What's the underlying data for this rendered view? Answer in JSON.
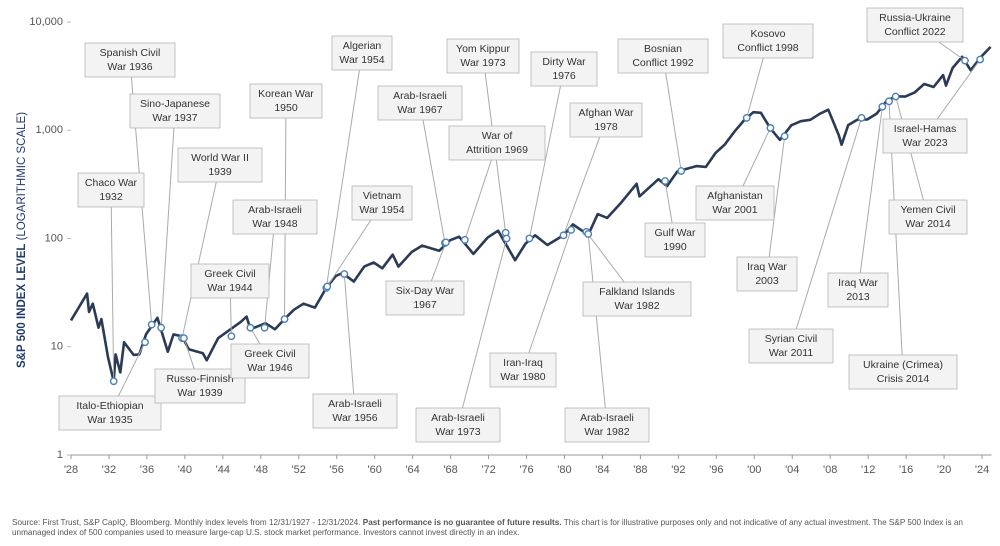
{
  "chart_data": {
    "type": "line",
    "log_scale": true,
    "color": "#2b3a55",
    "marker_color": "#4a7fb5",
    "y_label": "S&P 500 INDEX LEVEL",
    "y_label_note": "(LOGARITHMIC SCALE)",
    "xlim": [
      1928,
      2025
    ],
    "ylim": [
      1,
      10000
    ],
    "xticks": [
      {
        "value": 1928,
        "label": "'28"
      },
      {
        "value": 1932,
        "label": "'32"
      },
      {
        "value": 1936,
        "label": "'36"
      },
      {
        "value": 1940,
        "label": "'40"
      },
      {
        "value": 1944,
        "label": "'44"
      },
      {
        "value": 1948,
        "label": "'48"
      },
      {
        "value": 1952,
        "label": "'52"
      },
      {
        "value": 1956,
        "label": "'56"
      },
      {
        "value": 1960,
        "label": "'60"
      },
      {
        "value": 1964,
        "label": "'64"
      },
      {
        "value": 1968,
        "label": "'68"
      },
      {
        "value": 1972,
        "label": "'72"
      },
      {
        "value": 1976,
        "label": "'76"
      },
      {
        "value": 1980,
        "label": "'80"
      },
      {
        "value": 1984,
        "label": "'84"
      },
      {
        "value": 1988,
        "label": "'88"
      },
      {
        "value": 1992,
        "label": "'92"
      },
      {
        "value": 1996,
        "label": "'96"
      },
      {
        "value": 2000,
        "label": "'00"
      },
      {
        "value": 2004,
        "label": "'04"
      },
      {
        "value": 2008,
        "label": "'08"
      },
      {
        "value": 2012,
        "label": "'12"
      },
      {
        "value": 2016,
        "label": "'16"
      },
      {
        "value": 2020,
        "label": "'20"
      },
      {
        "value": 2024,
        "label": "'24"
      }
    ],
    "yticks": [
      1,
      10,
      100,
      {
        "value": 1000,
        "label": "1,000"
      },
      {
        "value": 10000,
        "label": "10,000"
      }
    ],
    "x": [
      1928.0,
      1929.7,
      1929.9,
      1930.3,
      1930.9,
      1931.2,
      1931.9,
      1932.5,
      1932.7,
      1933.2,
      1933.6,
      1934.6,
      1935.2,
      1935.9,
      1937.1,
      1938.2,
      1938.8,
      1939.7,
      1940.4,
      1941.9,
      1942.3,
      1943.5,
      1945.9,
      1946.5,
      1946.9,
      1948.5,
      1949.5,
      1950.5,
      1951.5,
      1952.5,
      1953.7,
      1954.9,
      1955.9,
      1956.6,
      1957.8,
      1958.9,
      1959.9,
      1960.8,
      1961.9,
      1962.5,
      1963.9,
      1965.0,
      1966.8,
      1967.9,
      1968.9,
      1970.4,
      1971.9,
      1973.0,
      1974.8,
      1975.9,
      1976.9,
      1978.2,
      1979.9,
      1980.9,
      1982.5,
      1983.5,
      1984.5,
      1985.9,
      1987.6,
      1987.9,
      1989.9,
      1990.8,
      1991.9,
      1993.9,
      1994.9,
      1995.9,
      1996.9,
      1997.9,
      1998.9,
      1999.9,
      2000.7,
      2001.7,
      2002.7,
      2003.9,
      2004.9,
      2005.9,
      2006.9,
      2007.8,
      2008.9,
      2009.2,
      2009.9,
      2010.9,
      2011.9,
      2012.9,
      2013.9,
      2014.9,
      2015.9,
      2016.9,
      2017.9,
      2018.9,
      2019.9,
      2020.2,
      2020.9,
      2021.9,
      2022.8,
      2023.9,
      2024.9
    ],
    "values": [
      17.5,
      31,
      21,
      25,
      15,
      18,
      8,
      4.8,
      8.5,
      5.8,
      11,
      8.4,
      8.5,
      13,
      18.5,
      9,
      13,
      12.5,
      9.5,
      8.7,
      7.5,
      12,
      17,
      19,
      14.5,
      16.5,
      14.5,
      18,
      22,
      25,
      23,
      35,
      45,
      48,
      40,
      55,
      60,
      53,
      71,
      55,
      75,
      86,
      77,
      96,
      104,
      72,
      102,
      118,
      63,
      90,
      107,
      87,
      107,
      135,
      108,
      168,
      155,
      211,
      320,
      245,
      353,
      305,
      417,
      466,
      459,
      615,
      740,
      970,
      1229,
      1469,
      1450,
      1040,
      815,
      1112,
      1212,
      1248,
      1418,
      1549,
      903,
      735,
      1115,
      1258,
      1258,
      1426,
      1848,
      2059,
      2044,
      2239,
      2674,
      2507,
      3231,
      2585,
      3756,
      4766,
      3586,
      4770,
      5882
    ],
    "annotations": [
      {
        "label": [
          "Spanish Civil",
          "War 1936"
        ],
        "x": 1936.5,
        "y": 16
      },
      {
        "label": [
          "Sino-Japanese",
          "War 1937"
        ],
        "x": 1937.5,
        "y": 15
      },
      {
        "label": [
          "Chaco War",
          "1932"
        ],
        "x": 1932.5,
        "y": 4.8
      },
      {
        "label": [
          "World War II",
          "1939"
        ],
        "x": 1939.7,
        "y": 12
      },
      {
        "label": [
          "Italo-Ethiopian",
          "War 1935"
        ],
        "x": 1935.8,
        "y": 11
      },
      {
        "label": [
          "Russo-Finnish",
          "War 1939"
        ],
        "x": 1939.9,
        "y": 12
      },
      {
        "label": [
          "Greek Civil",
          "War 1944"
        ],
        "x": 1944.9,
        "y": 12.5
      },
      {
        "label": [
          "Korean War",
          "1950"
        ],
        "x": 1950.5,
        "y": 18
      },
      {
        "label": [
          "Arab-Israeli",
          "War 1948"
        ],
        "x": 1948.4,
        "y": 15
      },
      {
        "label": [
          "Greek Civil",
          "War 1946"
        ],
        "x": 1946.9,
        "y": 15
      },
      {
        "label": [
          "Algerian",
          "War 1954"
        ],
        "x": 1954.9,
        "y": 35
      },
      {
        "label": [
          "Vietnam",
          "War 1954"
        ],
        "x": 1955.0,
        "y": 36
      },
      {
        "label": [
          "Arab-Israeli",
          "War 1956"
        ],
        "x": 1956.8,
        "y": 47
      },
      {
        "label": [
          "Arab-Israeli",
          "War 1967"
        ],
        "x": 1967.4,
        "y": 91
      },
      {
        "label": [
          "Six-Day War",
          "1967"
        ],
        "x": 1967.5,
        "y": 92
      },
      {
        "label": [
          "Yom Kippur",
          "War 1973"
        ],
        "x": 1973.8,
        "y": 113
      },
      {
        "label": [
          "War of",
          "Attrition 1969"
        ],
        "x": 1969.5,
        "y": 97
      },
      {
        "label": [
          "Arab-Israeli",
          "War 1973"
        ],
        "x": 1973.9,
        "y": 100
      },
      {
        "label": [
          "Dirty War",
          "1976"
        ],
        "x": 1976.3,
        "y": 100
      },
      {
        "label": [
          "Afghan War",
          "1978"
        ],
        "x": 1979.9,
        "y": 107
      },
      {
        "label": [
          "Bosnian",
          "Conflict 1992"
        ],
        "x": 1992.3,
        "y": 420
      },
      {
        "label": [
          "Iran-Iraq",
          "War 1980"
        ],
        "x": 1980.7,
        "y": 120
      },
      {
        "label": [
          "Falkland Islands",
          "War 1982"
        ],
        "x": 1982.3,
        "y": 115
      },
      {
        "label": [
          "Arab-Israeli",
          "War 1982"
        ],
        "x": 1982.5,
        "y": 110
      },
      {
        "label": [
          "Gulf War",
          "1990"
        ],
        "x": 1990.6,
        "y": 340
      },
      {
        "label": [
          "Kosovo",
          "Conflict 1998"
        ],
        "x": 1999.2,
        "y": 1300
      },
      {
        "label": [
          "Afghanistan",
          "War 2001"
        ],
        "x": 2001.7,
        "y": 1050
      },
      {
        "label": [
          "Iraq War",
          "2003"
        ],
        "x": 2003.2,
        "y": 880
      },
      {
        "label": [
          "Syrian Civil",
          "War 2011"
        ],
        "x": 2011.3,
        "y": 1300
      },
      {
        "label": [
          "Iraq War",
          "2013"
        ],
        "x": 2013.5,
        "y": 1650
      },
      {
        "label": [
          "Ukraine (Crimea)",
          "Crisis 2014"
        ],
        "x": 2014.2,
        "y": 1850
      },
      {
        "label": [
          "Yemen Civil",
          "War 2014"
        ],
        "x": 2014.9,
        "y": 2050
      },
      {
        "label": [
          "Russia-Ukraine",
          "Conflict 2022"
        ],
        "x": 2022.2,
        "y": 4400
      },
      {
        "label": [
          "Israel-Hamas",
          "War 2023"
        ],
        "x": 2023.8,
        "y": 4500
      }
    ],
    "footnote": [
      "Source: First Trust, S&P CapIQ, Bloomberg. Monthly index levels from 12/31/1927 - 12/31/2024. ",
      "Past performance is no guarantee of future results.",
      " This chart is for illustrative purposes only and not indicative of any actual investment. The S&P 500 Index is an unmanaged index of 500 companies used to measure large-cap U.S. stock market performance. Investors cannot invest directly in an index."
    ]
  }
}
